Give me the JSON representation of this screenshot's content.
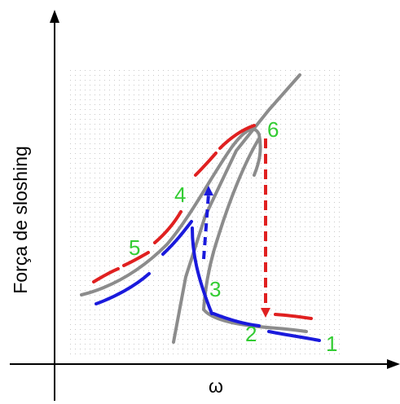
{
  "diagram": {
    "y_axis_label": "Força de sloshing",
    "x_axis_label": "ω",
    "point_labels": [
      "1",
      "2",
      "3",
      "4",
      "5",
      "6"
    ],
    "colors": {
      "upper_branch": "#e02020",
      "lower_branch": "#1a1adc",
      "backbone": "#8c8c8c",
      "labels": "#33cc33",
      "grid_dots": "#c8c8c8",
      "axes": "#000000"
    }
  }
}
